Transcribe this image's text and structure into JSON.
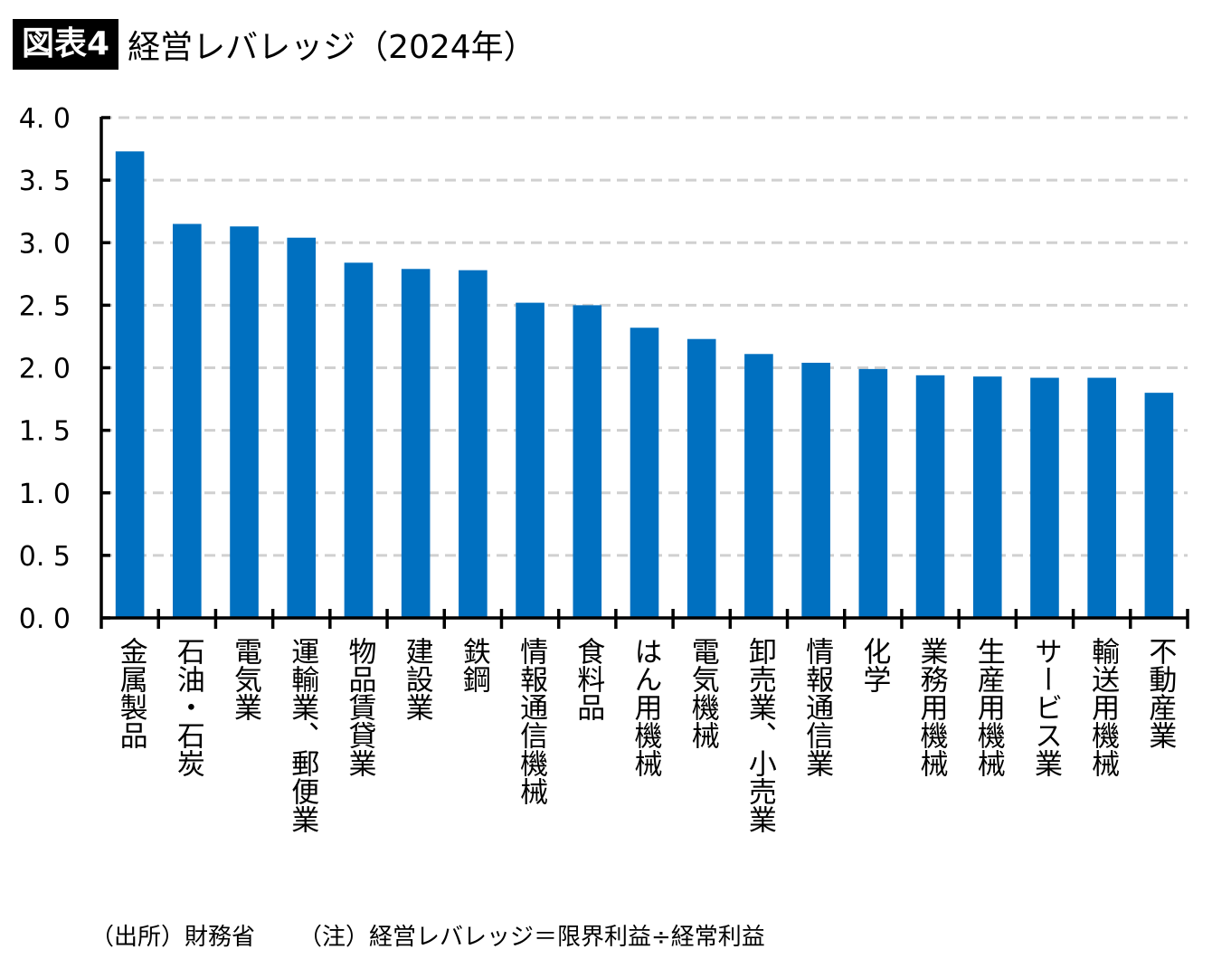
{
  "header": {
    "badge": "図表4",
    "title": "経営レバレッジ（2024年）"
  },
  "footer": {
    "source": "（出所）財務省",
    "note": "（注）経営レバレッジ＝限界利益÷経常利益"
  },
  "colors": {
    "bar": "#0070C0",
    "grid": "#D0D0D0",
    "axis": "#000000"
  },
  "chart_data": {
    "type": "bar",
    "title": "経営レバレッジ（2024年）",
    "xlabel": "",
    "ylabel": "",
    "ylim": [
      0,
      4.0
    ],
    "yticks": [
      "0.0",
      "0.5",
      "1.0",
      "1.5",
      "2.0",
      "2.5",
      "3.0",
      "3.5",
      "4.0"
    ],
    "ytick_values": [
      0,
      0.5,
      1.0,
      1.5,
      2.0,
      2.5,
      3.0,
      3.5,
      4.0
    ],
    "grid": "horizontal-dashed",
    "legend": "none",
    "categories": [
      "金属製品",
      "石油・石炭",
      "電気業",
      "運輸業、郵便業",
      "物品賃貸業",
      "建設業",
      "鉄鋼",
      "情報通信機械",
      "食料品",
      "はん用機械",
      "電気機械",
      "卸売業、小売業",
      "情報通信業",
      "化学",
      "業務用機械",
      "生産用機械",
      "サービス業",
      "輸送用機械",
      "不動産業"
    ],
    "values": [
      3.73,
      3.15,
      3.13,
      3.04,
      2.84,
      2.79,
      2.78,
      2.52,
      2.5,
      2.32,
      2.23,
      2.11,
      2.04,
      1.99,
      1.94,
      1.93,
      1.92,
      1.92,
      1.8
    ]
  }
}
